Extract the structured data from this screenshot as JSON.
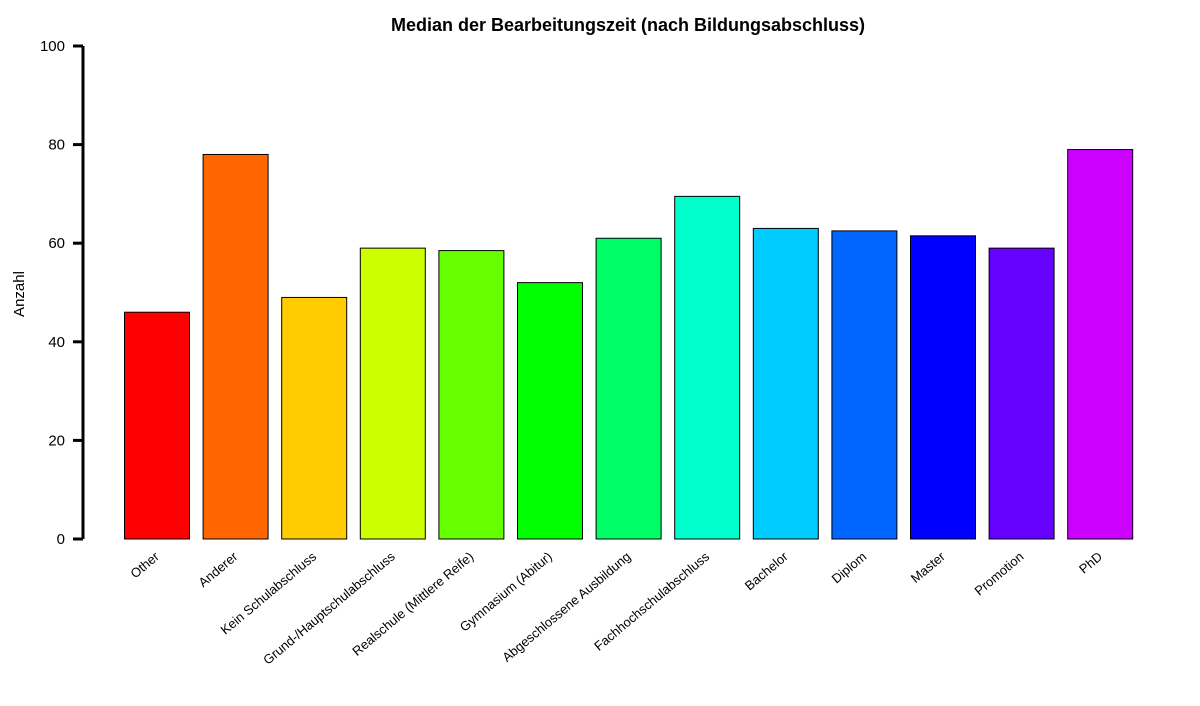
{
  "chart_data": {
    "type": "bar",
    "title": "Median der Bearbeitungszeit (nach Bildungsabschluss)",
    "xlabel": "",
    "ylabel": "Anzahl",
    "ylim": [
      0,
      100
    ],
    "yticks": [
      0,
      20,
      40,
      60,
      80,
      100
    ],
    "grid": false,
    "legend": "none",
    "categories": [
      "Other",
      "Anderer",
      "Kein Schulabschluss",
      "Grund-/Hauptschulabschluss",
      "Realschule (Mittlere Reife)",
      "Gymnasium (Abitur)",
      "Abgeschlossene Ausbildung",
      "Fachhochschulabschluss",
      "Bachelor",
      "Diplom",
      "Master",
      "Promotion",
      "PhD"
    ],
    "values": [
      46,
      78,
      49,
      59,
      58.5,
      52,
      61,
      69.5,
      63,
      62.5,
      61.5,
      59,
      79
    ],
    "colors": [
      "#FF0000",
      "#FF6600",
      "#FFCC00",
      "#CCFF00",
      "#66FF00",
      "#00FF00",
      "#00FF66",
      "#00FFCC",
      "#00CCFF",
      "#0066FF",
      "#0000FF",
      "#6600FF",
      "#CC00FF"
    ]
  }
}
